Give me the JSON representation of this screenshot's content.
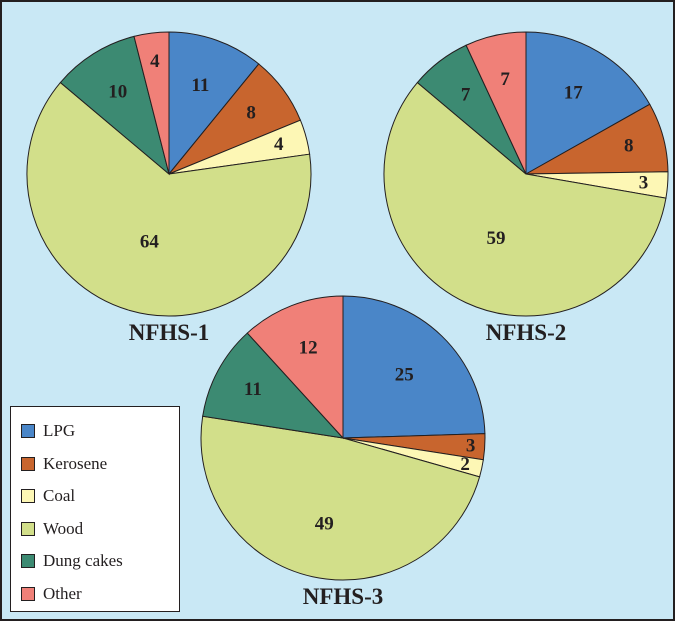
{
  "chart_data": [
    {
      "type": "pie",
      "title": "NFHS-1",
      "categories": [
        "LPG",
        "Kerosene",
        "Coal",
        "Wood",
        "Dung cakes",
        "Other"
      ],
      "values": [
        11,
        8,
        4,
        64,
        10,
        4
      ]
    },
    {
      "type": "pie",
      "title": "NFHS-2",
      "categories": [
        "LPG",
        "Kerosene",
        "Coal",
        "Wood",
        "Dung cakes",
        "Other"
      ],
      "values": [
        17,
        8,
        3,
        59,
        7,
        7
      ]
    },
    {
      "type": "pie",
      "title": "NFHS-3",
      "categories": [
        "LPG",
        "Kerosene",
        "Coal",
        "Wood",
        "Dung cakes",
        "Other"
      ],
      "values": [
        25,
        3,
        2,
        49,
        11,
        12
      ]
    }
  ],
  "legend": {
    "placement": "bottom-left",
    "items": [
      {
        "label": "LPG",
        "color": "#4a86c8"
      },
      {
        "label": "Kerosene",
        "color": "#c8652e"
      },
      {
        "label": "Coal",
        "color": "#fdf7b5"
      },
      {
        "label": "Wood",
        "color": "#d2df8a"
      },
      {
        "label": "Dung cakes",
        "color": "#3c8a72"
      },
      {
        "label": "Other",
        "color": "#f08078"
      }
    ]
  }
}
